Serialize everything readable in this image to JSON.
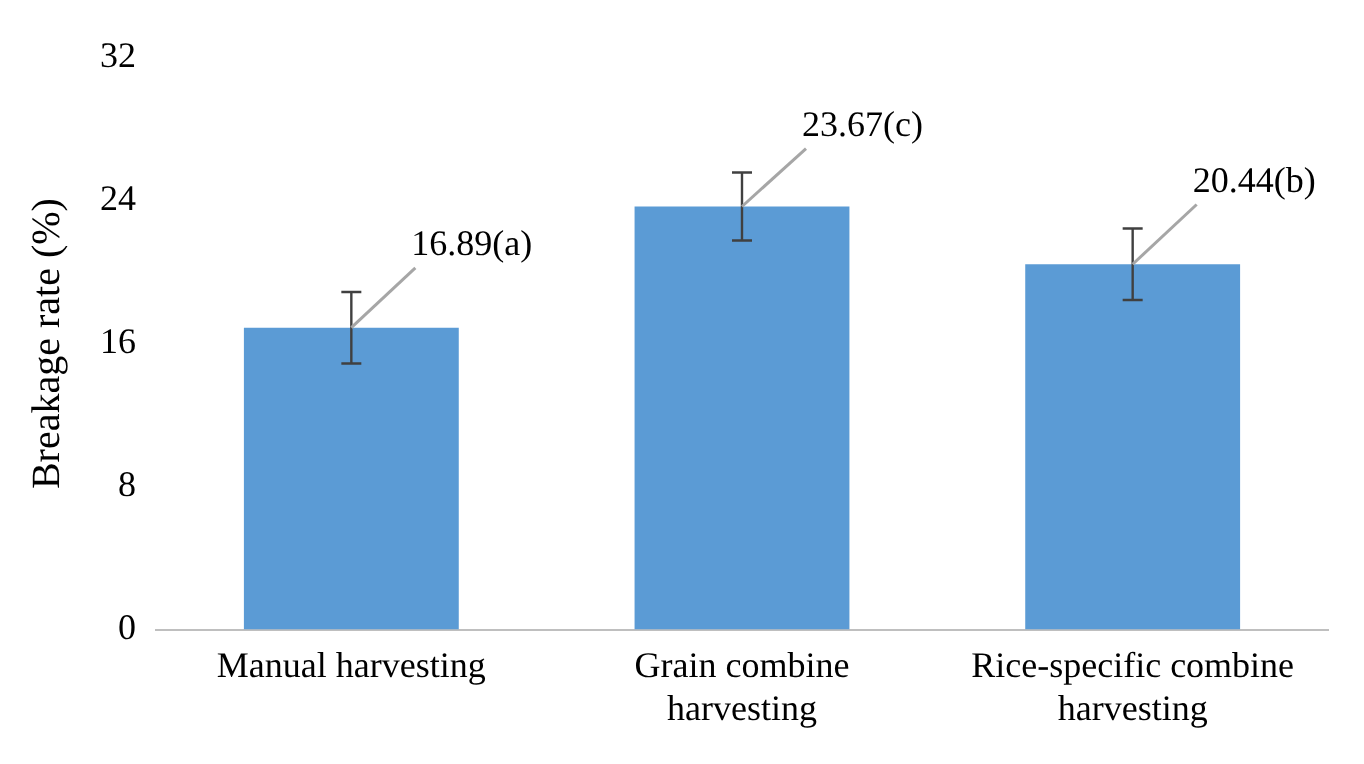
{
  "chart_data": {
    "type": "bar",
    "ylabel": "Breakage rate (%)",
    "categories": [
      "Manual harvesting",
      "Grain combine harvesting",
      "Rice-specific combine harvesting"
    ],
    "values": [
      16.89,
      23.67,
      20.44
    ],
    "value_labels": [
      "16.89(a)",
      "23.67(c)",
      "20.44(b)"
    ],
    "errors": [
      2,
      1.9,
      2
    ],
    "color": "#5b9bd5",
    "ylim": [
      0,
      32
    ],
    "yticks": [
      0,
      8,
      16,
      24,
      32
    ],
    "grid": false,
    "legend": false
  }
}
